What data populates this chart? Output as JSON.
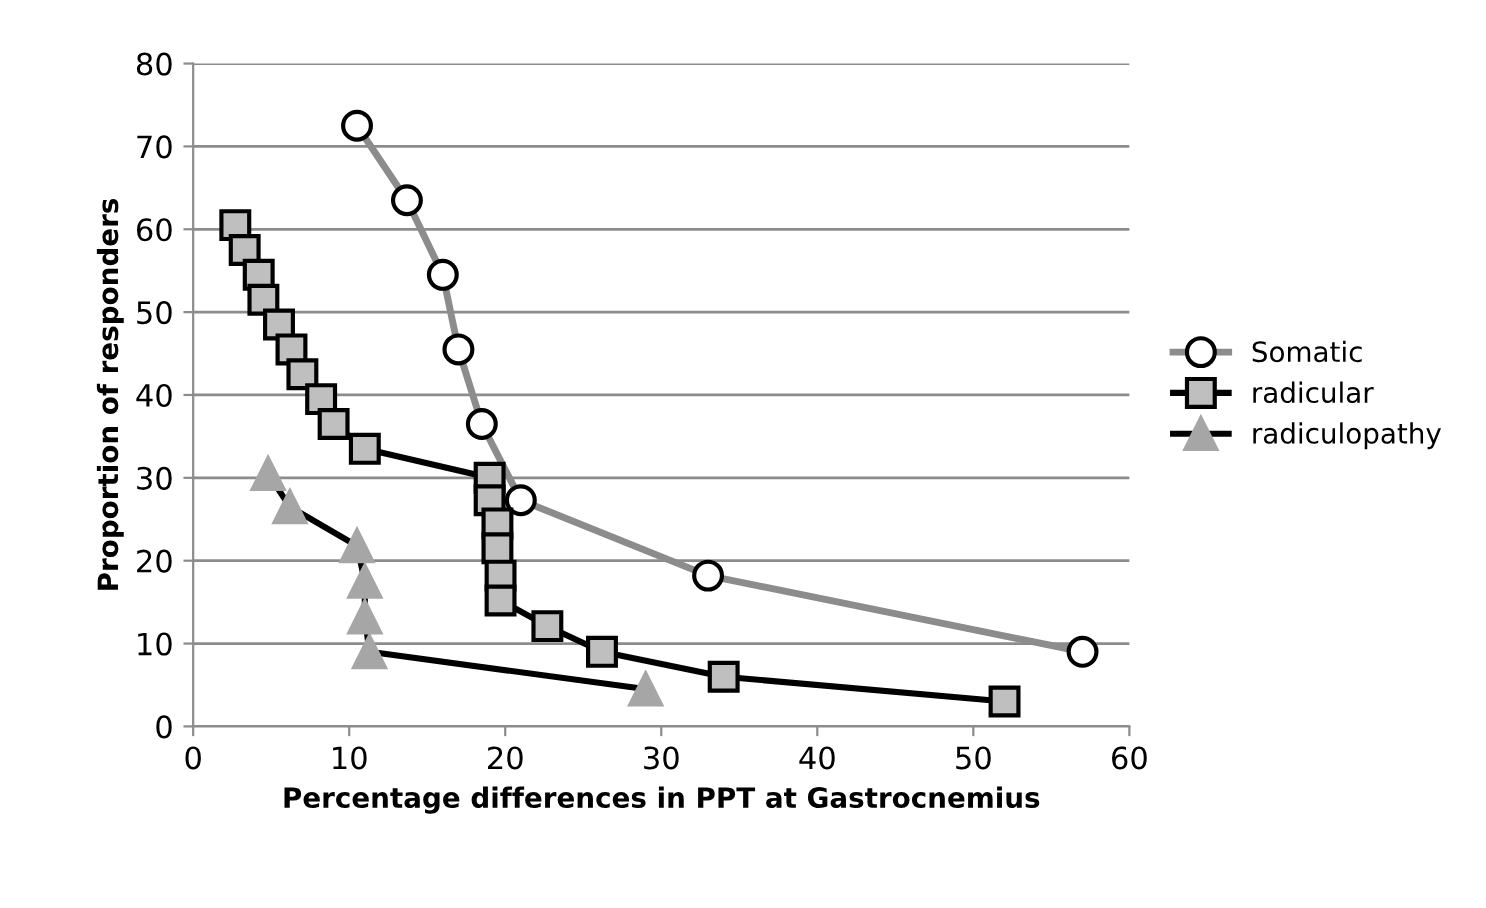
{
  "chart_data": {
    "type": "line",
    "xlabel": "Percentage differences in PPT at Gastrocnemius",
    "ylabel": "Proportion of responders",
    "xlim": [
      0,
      60
    ],
    "xticks": [
      0,
      10,
      20,
      30,
      40,
      50,
      60
    ],
    "ylim": [
      0,
      80
    ],
    "yticks": [
      0,
      10,
      20,
      30,
      40,
      50,
      60,
      70,
      80
    ],
    "grid": "y",
    "legend": "right",
    "series": [
      {
        "name": "Somatic",
        "color": "#8c8c8c",
        "marker": "circle",
        "x": [
          10.5,
          13.7,
          16,
          17,
          18.5,
          21,
          33,
          57
        ],
        "values": [
          72.5,
          63.5,
          54.5,
          45.5,
          36.5,
          27.3,
          18.2,
          9
        ]
      },
      {
        "name": "radicular",
        "color": "#000000",
        "marker": "square",
        "x": [
          2.7,
          3.3,
          4.2,
          4.5,
          5.5,
          6.3,
          7,
          8.2,
          9,
          11,
          19,
          19,
          19.5,
          19.5,
          19.7,
          19.7,
          22.7,
          26.2,
          34,
          52
        ],
        "values": [
          60.5,
          57.5,
          54.5,
          51.5,
          48.5,
          45.5,
          42.5,
          39.5,
          36.5,
          33.5,
          30,
          27.3,
          24.5,
          21.5,
          18.2,
          15.2,
          12.1,
          9,
          6,
          3
        ]
      },
      {
        "name": "radiculopathy",
        "color": "#000000",
        "marker": "triangle",
        "x": [
          4.8,
          6.2,
          10.5,
          11,
          11,
          11.3,
          29
        ],
        "values": [
          30.5,
          26.5,
          21.8,
          17.5,
          13.2,
          9,
          4.5
        ]
      }
    ]
  }
}
